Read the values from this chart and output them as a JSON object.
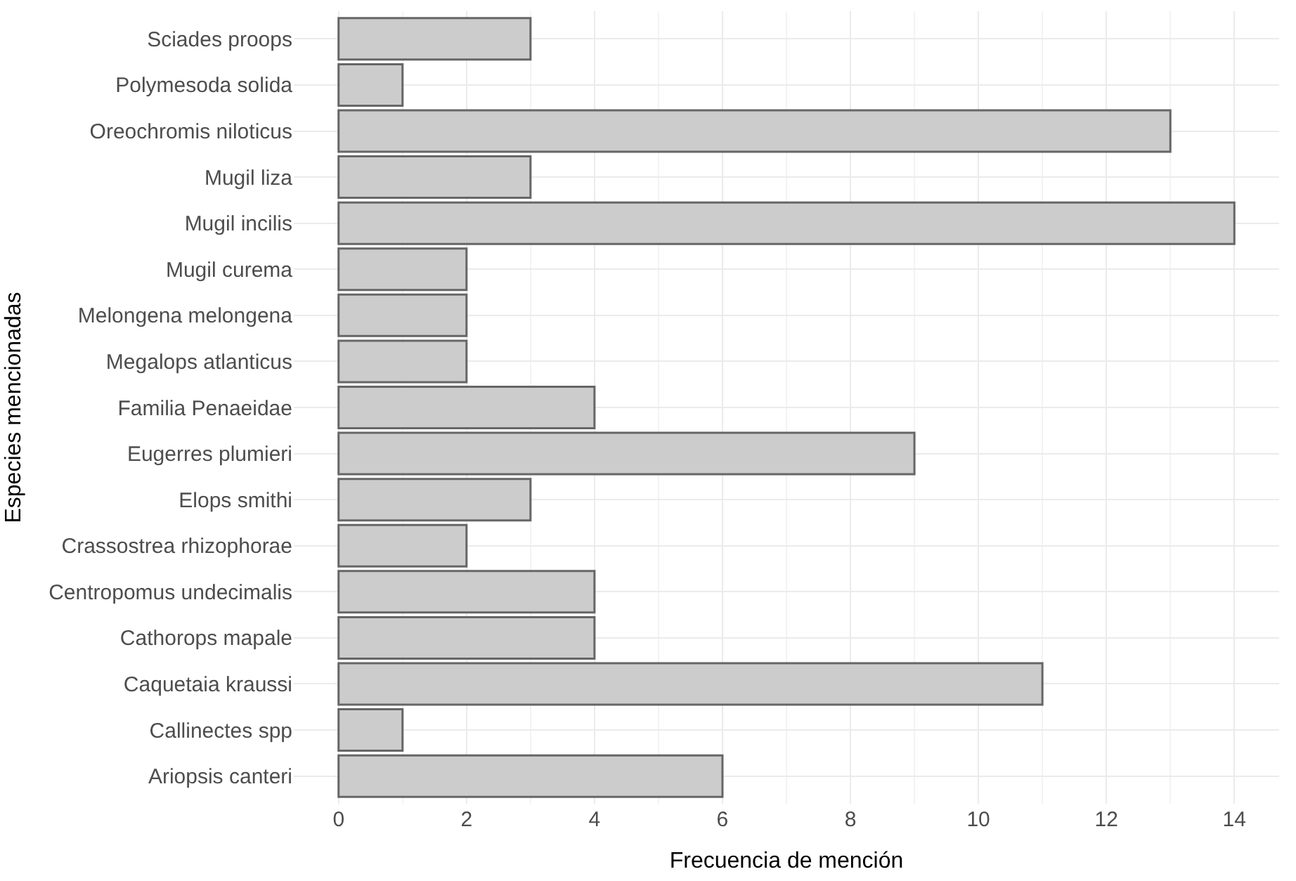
{
  "chart_data": {
    "type": "bar",
    "orientation": "horizontal",
    "xlabel": "Frecuencia de mención",
    "ylabel": "Especies mencionadas",
    "categories": [
      "Sciades proops",
      "Polymesoda solida",
      "Oreochromis niloticus",
      "Mugil liza",
      "Mugil incilis",
      "Mugil curema",
      "Melongena melongena",
      "Megalops atlanticus",
      "Familia Penaeidae",
      "Eugerres plumieri",
      "Elops smithi",
      "Crassostrea rhizophorae",
      "Centropomus undecimalis",
      "Cathorops mapale",
      "Caquetaia kraussi",
      "Callinectes spp",
      "Ariopsis canteri"
    ],
    "values": [
      3,
      1,
      13,
      3,
      14,
      2,
      2,
      2,
      4,
      9,
      3,
      2,
      4,
      4,
      11,
      1,
      6
    ],
    "color": "#cccccc",
    "xlim": [
      -0.7,
      14.7
    ],
    "xticks": [
      0,
      2,
      4,
      6,
      8,
      10,
      12,
      14
    ],
    "grid": true
  }
}
